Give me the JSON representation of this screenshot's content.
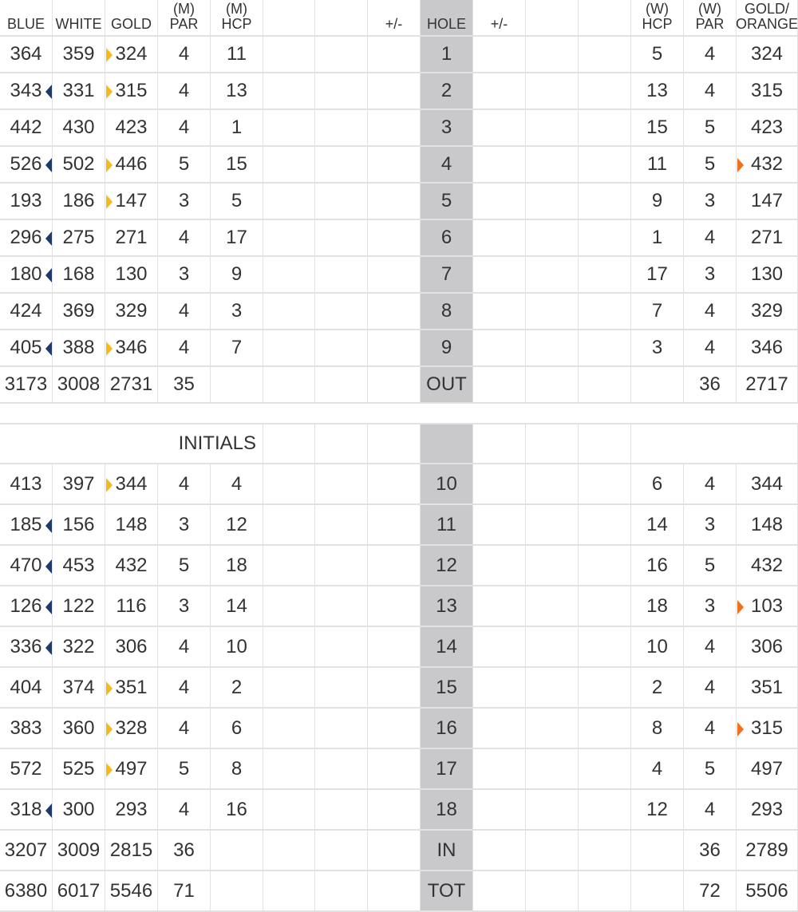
{
  "header": [
    "BLUE",
    "WHITE",
    "GOLD",
    "(M)\nPAR",
    "(M)\nHCP",
    null,
    null,
    "+/-",
    "HOLE",
    "+/-",
    null,
    null,
    "(W)\nHCP",
    "(W)\nPAR",
    "GOLD/\nORANGE"
  ],
  "front": [
    [
      364,
      359,
      324,
      4,
      11,
      null,
      null,
      null,
      1,
      null,
      null,
      null,
      5,
      4,
      324
    ],
    [
      343,
      331,
      315,
      4,
      13,
      null,
      null,
      null,
      2,
      null,
      null,
      null,
      13,
      4,
      315
    ],
    [
      442,
      430,
      423,
      4,
      1,
      null,
      null,
      null,
      3,
      null,
      null,
      null,
      15,
      5,
      423
    ],
    [
      526,
      502,
      446,
      5,
      15,
      null,
      null,
      null,
      4,
      null,
      null,
      null,
      11,
      5,
      432
    ],
    [
      193,
      186,
      147,
      3,
      5,
      null,
      null,
      null,
      5,
      null,
      null,
      null,
      9,
      3,
      147
    ],
    [
      296,
      275,
      271,
      4,
      17,
      null,
      null,
      null,
      6,
      null,
      null,
      null,
      1,
      4,
      271
    ],
    [
      180,
      168,
      130,
      3,
      9,
      null,
      null,
      null,
      7,
      null,
      null,
      null,
      17,
      3,
      130
    ],
    [
      424,
      369,
      329,
      4,
      3,
      null,
      null,
      null,
      8,
      null,
      null,
      null,
      7,
      4,
      329
    ],
    [
      405,
      388,
      346,
      4,
      7,
      null,
      null,
      null,
      9,
      null,
      null,
      null,
      3,
      4,
      346
    ],
    [
      3173,
      3008,
      2731,
      35,
      null,
      null,
      null,
      null,
      "OUT",
      null,
      null,
      null,
      null,
      36,
      2717
    ]
  ],
  "initials": "INITIALS",
  "back": [
    [
      413,
      397,
      344,
      4,
      4,
      null,
      null,
      null,
      10,
      null,
      null,
      null,
      6,
      4,
      344
    ],
    [
      185,
      156,
      148,
      3,
      12,
      null,
      null,
      null,
      11,
      null,
      null,
      null,
      14,
      3,
      148
    ],
    [
      470,
      453,
      432,
      5,
      18,
      null,
      null,
      null,
      12,
      null,
      null,
      null,
      16,
      5,
      432
    ],
    [
      126,
      122,
      116,
      3,
      14,
      null,
      null,
      null,
      13,
      null,
      null,
      null,
      18,
      3,
      103
    ],
    [
      336,
      322,
      306,
      4,
      10,
      null,
      null,
      null,
      14,
      null,
      null,
      null,
      10,
      4,
      306
    ],
    [
      404,
      374,
      351,
      4,
      2,
      null,
      null,
      null,
      15,
      null,
      null,
      null,
      2,
      4,
      351
    ],
    [
      383,
      360,
      328,
      4,
      6,
      null,
      null,
      null,
      16,
      null,
      null,
      null,
      8,
      4,
      315
    ],
    [
      572,
      525,
      497,
      5,
      8,
      null,
      null,
      null,
      17,
      null,
      null,
      null,
      4,
      5,
      497
    ],
    [
      318,
      300,
      293,
      4,
      16,
      null,
      null,
      null,
      18,
      null,
      null,
      null,
      12,
      4,
      293
    ],
    [
      3207,
      3009,
      2815,
      36,
      null,
      null,
      null,
      null,
      "IN",
      null,
      null,
      null,
      null,
      36,
      2789
    ],
    [
      6380,
      6017,
      5546,
      71,
      null,
      null,
      null,
      null,
      "TOT",
      null,
      null,
      null,
      null,
      72,
      5506
    ]
  ]
}
